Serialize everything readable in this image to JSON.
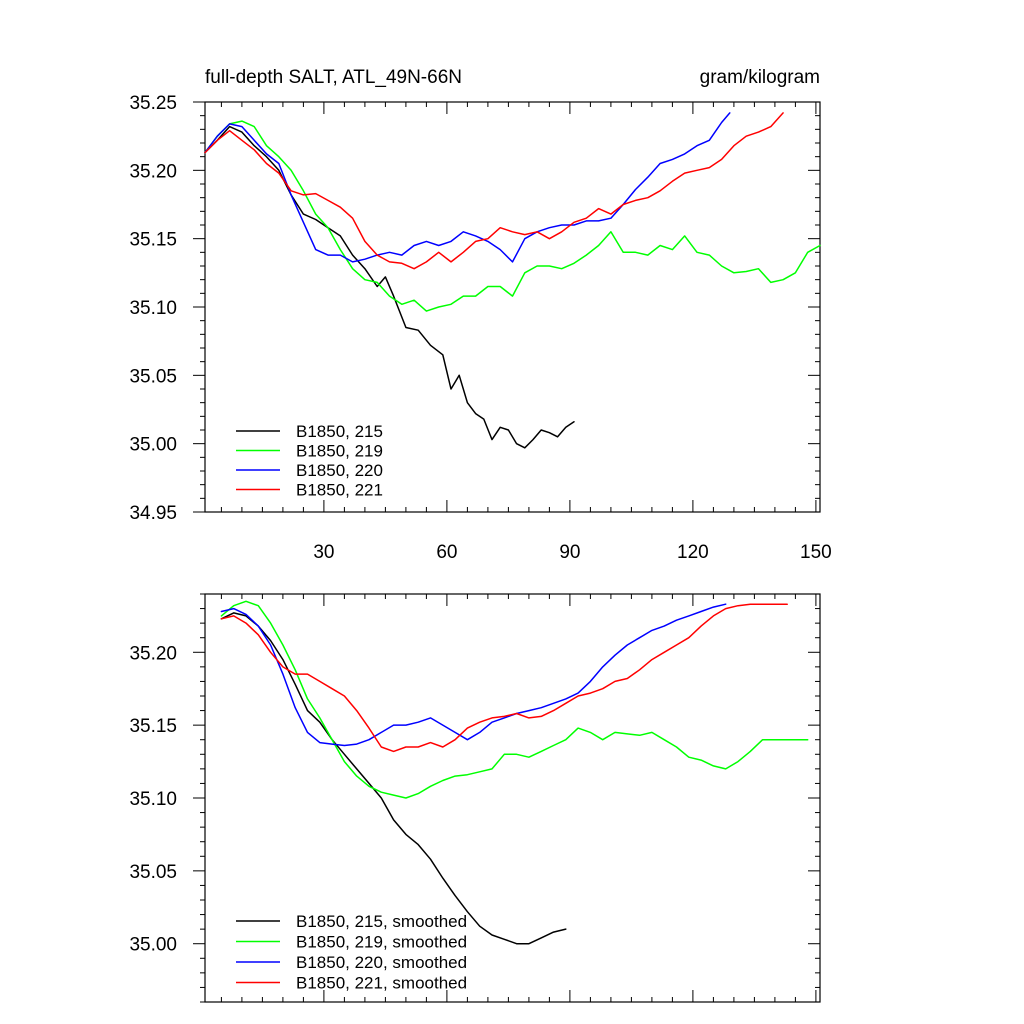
{
  "chart_data": [
    {
      "type": "line",
      "title": "full-depth SALT, ATL_49N-66N",
      "units": "gram/kilogram",
      "xlabel": "",
      "ylabel": "",
      "xlim": [
        1,
        151
      ],
      "ylim": [
        34.95,
        35.25
      ],
      "x_ticks": [
        30,
        60,
        90,
        120,
        150
      ],
      "x_tick_labels": [
        "30",
        "60",
        "90",
        "120",
        "150"
      ],
      "y_ticks": [
        34.95,
        35.0,
        35.05,
        35.1,
        35.15,
        35.2,
        35.25
      ],
      "y_tick_labels": [
        "34.95",
        "35.00",
        "35.05",
        "35.10",
        "35.15",
        "35.20",
        "35.25"
      ],
      "legend_position": "bottom-left",
      "series": [
        {
          "name": "B1850, 215",
          "color": "#000000",
          "x": [
            1,
            4,
            7,
            10,
            13,
            16,
            19,
            22,
            25,
            28,
            31,
            34,
            37,
            40,
            43,
            45,
            47,
            50,
            53,
            56,
            59,
            61,
            63,
            65,
            67,
            69,
            71,
            73,
            75,
            77,
            79,
            81,
            83,
            85,
            87,
            89,
            91
          ],
          "y": [
            35.213,
            35.222,
            35.232,
            35.228,
            35.218,
            35.21,
            35.2,
            35.182,
            35.168,
            35.164,
            35.158,
            35.152,
            35.138,
            35.128,
            35.115,
            35.122,
            35.108,
            35.085,
            35.083,
            35.072,
            35.065,
            35.04,
            35.05,
            35.03,
            35.022,
            35.018,
            35.003,
            35.012,
            35.01,
            35.0,
            34.997,
            35.003,
            35.01,
            35.008,
            35.005,
            35.012,
            35.016
          ]
        },
        {
          "name": "B1850, 219",
          "color": "#00ff00",
          "x": [
            1,
            4,
            7,
            10,
            13,
            16,
            19,
            22,
            25,
            28,
            31,
            34,
            37,
            40,
            43,
            46,
            49,
            52,
            55,
            58,
            61,
            64,
            67,
            70,
            73,
            76,
            79,
            82,
            85,
            88,
            91,
            94,
            97,
            100,
            103,
            106,
            109,
            112,
            115,
            118,
            121,
            124,
            127,
            130,
            133,
            136,
            139,
            142,
            145,
            148,
            151
          ],
          "y": [
            35.213,
            35.225,
            35.234,
            35.236,
            35.232,
            35.218,
            35.21,
            35.2,
            35.185,
            35.168,
            35.158,
            35.142,
            35.128,
            35.12,
            35.118,
            35.108,
            35.102,
            35.105,
            35.097,
            35.1,
            35.102,
            35.108,
            35.108,
            35.115,
            35.115,
            35.108,
            35.125,
            35.13,
            35.13,
            35.128,
            35.132,
            35.138,
            35.145,
            35.155,
            35.14,
            35.14,
            35.138,
            35.145,
            35.142,
            35.152,
            35.14,
            35.138,
            35.13,
            35.125,
            35.126,
            35.128,
            35.118,
            35.12,
            35.125,
            35.14,
            35.145
          ]
        },
        {
          "name": "B1850, 220",
          "color": "#0000ff",
          "x": [
            1,
            4,
            7,
            10,
            13,
            16,
            19,
            22,
            25,
            28,
            31,
            34,
            37,
            40,
            43,
            46,
            49,
            52,
            55,
            58,
            61,
            64,
            67,
            70,
            73,
            76,
            79,
            82,
            85,
            88,
            91,
            94,
            97,
            100,
            103,
            106,
            109,
            112,
            115,
            118,
            121,
            124,
            127,
            129
          ],
          "y": [
            35.213,
            35.225,
            35.234,
            35.232,
            35.222,
            35.212,
            35.205,
            35.182,
            35.162,
            35.142,
            35.138,
            35.138,
            35.133,
            35.135,
            35.138,
            35.14,
            35.138,
            35.145,
            35.148,
            35.145,
            35.148,
            35.155,
            35.152,
            35.148,
            35.142,
            35.133,
            35.15,
            35.155,
            35.158,
            35.16,
            35.16,
            35.163,
            35.163,
            35.165,
            35.175,
            35.186,
            35.195,
            35.205,
            35.208,
            35.212,
            35.218,
            35.222,
            35.235,
            35.242
          ]
        },
        {
          "name": "B1850, 221",
          "color": "#ff0000",
          "x": [
            1,
            4,
            7,
            10,
            13,
            16,
            19,
            22,
            25,
            28,
            31,
            34,
            37,
            40,
            43,
            46,
            49,
            52,
            55,
            58,
            61,
            64,
            67,
            70,
            73,
            76,
            79,
            82,
            85,
            88,
            91,
            94,
            97,
            100,
            103,
            106,
            109,
            112,
            115,
            118,
            121,
            124,
            127,
            130,
            133,
            136,
            139,
            142
          ],
          "y": [
            35.213,
            35.222,
            35.229,
            35.222,
            35.215,
            35.205,
            35.198,
            35.185,
            35.182,
            35.183,
            35.178,
            35.173,
            35.165,
            35.148,
            35.138,
            35.133,
            35.132,
            35.128,
            35.133,
            35.14,
            35.133,
            35.14,
            35.148,
            35.15,
            35.158,
            35.155,
            35.153,
            35.155,
            35.15,
            35.155,
            35.162,
            35.165,
            35.172,
            35.168,
            35.175,
            35.178,
            35.18,
            35.185,
            35.192,
            35.198,
            35.2,
            35.202,
            35.208,
            35.218,
            35.225,
            35.228,
            35.232,
            35.242
          ]
        }
      ]
    },
    {
      "type": "line",
      "title": "",
      "xlabel": "",
      "ylabel": "",
      "xlim": [
        1,
        151
      ],
      "ylim": [
        34.96,
        35.24
      ],
      "x_ticks": [
        30,
        60,
        90,
        120,
        150
      ],
      "x_tick_labels": [],
      "y_ticks": [
        35.0,
        35.05,
        35.1,
        35.15,
        35.2
      ],
      "y_tick_labels": [
        "35.00",
        "35.05",
        "35.10",
        "35.15",
        "35.20"
      ],
      "legend_position": "bottom-left",
      "series": [
        {
          "name": "B1850, 215, smoothed",
          "color": "#000000",
          "x": [
            5,
            8,
            11,
            14,
            17,
            20,
            23,
            26,
            29,
            32,
            35,
            38,
            41,
            44,
            47,
            50,
            53,
            56,
            59,
            62,
            65,
            68,
            71,
            74,
            77,
            80,
            83,
            86,
            89
          ],
          "y": [
            35.223,
            35.227,
            35.225,
            35.218,
            35.208,
            35.195,
            35.178,
            35.16,
            35.152,
            35.14,
            35.13,
            35.12,
            35.11,
            35.1,
            35.085,
            35.075,
            35.068,
            35.058,
            35.045,
            35.033,
            35.022,
            35.012,
            35.006,
            35.003,
            35.0,
            35.0,
            35.004,
            35.008,
            35.01
          ]
        },
        {
          "name": "B1850, 219, smoothed",
          "color": "#00ff00",
          "x": [
            5,
            8,
            11,
            14,
            17,
            20,
            23,
            26,
            29,
            32,
            35,
            38,
            41,
            44,
            47,
            50,
            53,
            56,
            59,
            62,
            65,
            68,
            71,
            74,
            77,
            80,
            83,
            86,
            89,
            92,
            95,
            98,
            101,
            104,
            107,
            110,
            113,
            116,
            119,
            122,
            125,
            128,
            131,
            134,
            137,
            140,
            143,
            146,
            148
          ],
          "y": [
            35.225,
            35.232,
            35.235,
            35.232,
            35.22,
            35.205,
            35.188,
            35.168,
            35.155,
            35.14,
            35.125,
            35.115,
            35.108,
            35.104,
            35.102,
            35.1,
            35.103,
            35.108,
            35.112,
            35.115,
            35.116,
            35.118,
            35.12,
            35.13,
            35.13,
            35.128,
            35.132,
            35.136,
            35.14,
            35.148,
            35.145,
            35.14,
            35.145,
            35.144,
            35.143,
            35.145,
            35.14,
            35.135,
            35.128,
            35.126,
            35.122,
            35.12,
            35.125,
            35.132,
            35.14,
            35.14,
            35.14,
            35.14,
            35.14
          ]
        },
        {
          "name": "B1850, 220, smoothed",
          "color": "#0000ff",
          "x": [
            5,
            8,
            11,
            14,
            17,
            20,
            23,
            26,
            29,
            32,
            35,
            38,
            41,
            44,
            47,
            50,
            53,
            56,
            59,
            62,
            65,
            68,
            71,
            74,
            77,
            80,
            83,
            86,
            89,
            92,
            95,
            98,
            101,
            104,
            107,
            110,
            113,
            116,
            119,
            122,
            125,
            128
          ],
          "y": [
            35.228,
            35.23,
            35.226,
            35.218,
            35.205,
            35.185,
            35.162,
            35.145,
            35.138,
            35.137,
            35.136,
            35.137,
            35.14,
            35.145,
            35.15,
            35.15,
            35.152,
            35.155,
            35.15,
            35.145,
            35.14,
            35.145,
            35.152,
            35.155,
            35.158,
            35.16,
            35.162,
            35.165,
            35.168,
            35.172,
            35.18,
            35.19,
            35.198,
            35.205,
            35.21,
            35.215,
            35.218,
            35.222,
            35.225,
            35.228,
            35.231,
            35.233
          ]
        },
        {
          "name": "B1850, 221, smoothed",
          "color": "#ff0000",
          "x": [
            5,
            8,
            11,
            14,
            17,
            20,
            23,
            26,
            29,
            32,
            35,
            38,
            41,
            44,
            47,
            50,
            53,
            56,
            59,
            62,
            65,
            68,
            71,
            74,
            77,
            80,
            83,
            86,
            89,
            92,
            95,
            98,
            101,
            104,
            107,
            110,
            113,
            116,
            119,
            122,
            125,
            128,
            131,
            134,
            137,
            140,
            143
          ],
          "y": [
            35.223,
            35.225,
            35.22,
            35.212,
            35.2,
            35.19,
            35.185,
            35.185,
            35.18,
            35.175,
            35.17,
            35.16,
            35.148,
            35.135,
            35.132,
            35.135,
            35.135,
            35.138,
            35.135,
            35.14,
            35.148,
            35.152,
            35.155,
            35.156,
            35.158,
            35.155,
            35.156,
            35.16,
            35.165,
            35.17,
            35.172,
            35.175,
            35.18,
            35.182,
            35.188,
            35.195,
            35.2,
            35.205,
            35.21,
            35.218,
            35.225,
            35.23,
            35.232,
            35.233,
            35.233,
            35.233,
            35.233
          ]
        }
      ]
    }
  ]
}
